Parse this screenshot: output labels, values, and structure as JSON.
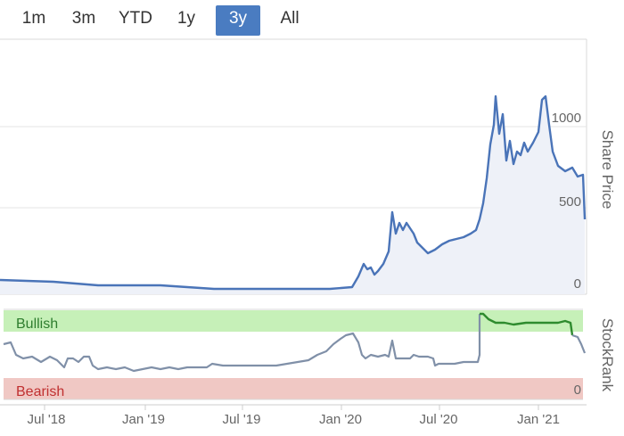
{
  "range_selector": {
    "buttons": [
      "1m",
      "3m",
      "YTD",
      "1y",
      "3y",
      "All"
    ],
    "active": "3y",
    "active_color": "#4a7cc1"
  },
  "chart_data": {
    "type": "line",
    "price_panel": {
      "axis_title": "Share Price",
      "yticks": [
        "1000",
        "500",
        "0"
      ],
      "ylim": [
        0,
        1050
      ],
      "series_color": "#4a74b8",
      "x": [
        "2018-04",
        "2018-06",
        "2018-08",
        "2018-10",
        "2018-12",
        "2019-02",
        "2019-04",
        "2019-06",
        "2019-08",
        "2019-10",
        "2019-12",
        "2020-01",
        "2020-02",
        "2020-03",
        "2020-04",
        "2020-05",
        "2020-06",
        "2020-07",
        "2020-08",
        "2020-09",
        "2020-10",
        "2020-11",
        "2020-12",
        "2021-01",
        "2021-02",
        "2021-03"
      ],
      "values": [
        58,
        57,
        52,
        47,
        44,
        40,
        30,
        22,
        20,
        21,
        23,
        27,
        30,
        130,
        480,
        280,
        250,
        290,
        300,
        480,
        1000,
        780,
        850,
        1000,
        800,
        720
      ]
    },
    "stockrank_panel": {
      "axis_title": "StockRank",
      "zones": [
        "Bullish",
        "Bearish"
      ],
      "yticks": [
        "0"
      ],
      "bullish_color": "#c6f0b8",
      "bearish_color": "#f0c8c4",
      "line_color": "#8090a8",
      "bullish_line_color": "#2e8b2e"
    },
    "xtick_labels": [
      "Jul '18",
      "Jan '19",
      "Jul '19",
      "Jan '20",
      "Jul '20",
      "Jan '21"
    ]
  }
}
